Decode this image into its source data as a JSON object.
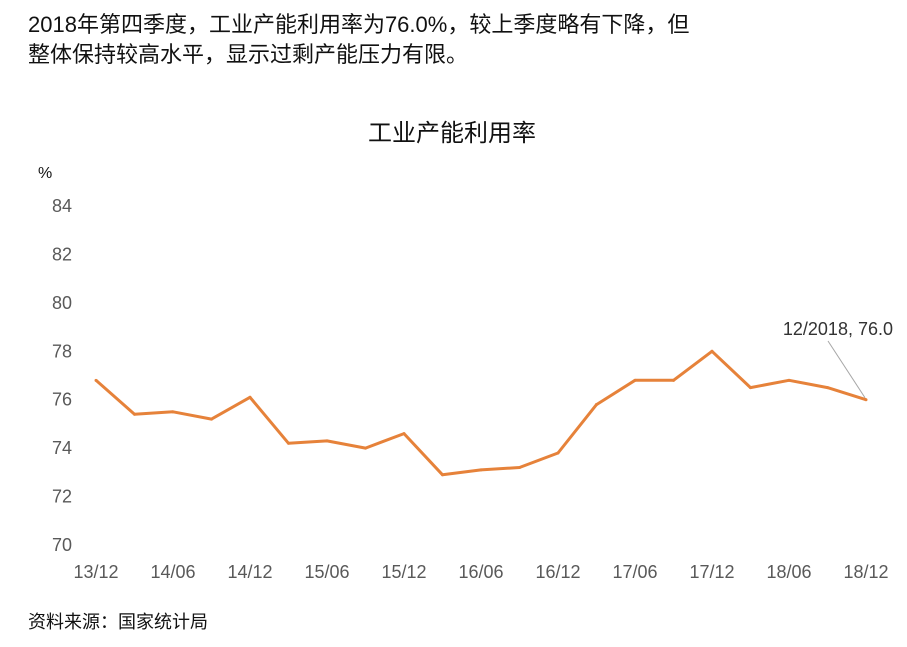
{
  "headline": {
    "line1": "2018年第四季度，工业产能利用率为76.0%，较上季度略有下降，但",
    "line2": "整体保持较高水平，显示过剩产能压力有限。"
  },
  "source": "资料来源：国家统计局",
  "chart_data": {
    "type": "line",
    "title": "工业产能利用率",
    "ylabel": "%",
    "xlabel": "",
    "ylim": [
      70,
      84
    ],
    "yticks": [
      70,
      72,
      74,
      76,
      78,
      80,
      82,
      84
    ],
    "grid": false,
    "x": [
      "13/12",
      "14/03",
      "14/06",
      "14/09",
      "14/12",
      "15/03",
      "15/06",
      "15/09",
      "15/12",
      "16/03",
      "16/06",
      "16/09",
      "16/12",
      "17/03",
      "17/06",
      "17/09",
      "17/12",
      "18/03",
      "18/06",
      "18/09",
      "18/12"
    ],
    "xtick_labels": [
      "13/12",
      "14/06",
      "14/12",
      "15/06",
      "15/12",
      "16/06",
      "16/12",
      "17/06",
      "17/12",
      "18/06",
      "18/12"
    ],
    "series": [
      {
        "color": "#E6823A",
        "values": [
          76.8,
          75.4,
          75.5,
          75.2,
          76.1,
          74.2,
          74.3,
          74.0,
          74.6,
          72.9,
          73.1,
          73.2,
          73.8,
          75.8,
          76.8,
          76.8,
          78.0,
          76.5,
          76.8,
          76.5,
          76.0
        ]
      }
    ],
    "annotation": {
      "text": "12/2018, 76.0",
      "x": "18/12",
      "y": 76.0
    }
  }
}
